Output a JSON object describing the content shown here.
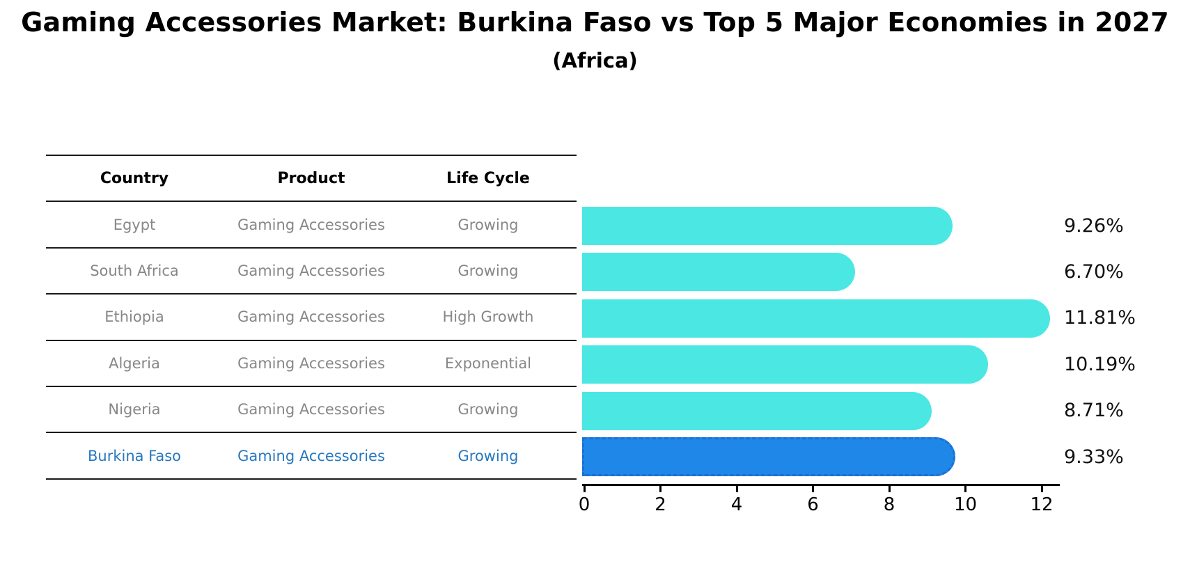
{
  "title": "Gaming Accessories Market: Burkina Faso vs Top 5 Major Economies in 2027",
  "subtitle": "(Africa)",
  "table": {
    "headers": [
      "Country",
      "Product",
      "Life Cycle"
    ],
    "rows": [
      {
        "country": "Egypt",
        "product": "Gaming Accessories",
        "life_cycle": "Growing",
        "highlight": false
      },
      {
        "country": "South Africa",
        "product": "Gaming Accessories",
        "life_cycle": "Growing",
        "highlight": false
      },
      {
        "country": "Ethiopia",
        "product": "Gaming Accessories",
        "life_cycle": "High Growth",
        "highlight": false
      },
      {
        "country": "Algeria",
        "product": "Gaming Accessories",
        "life_cycle": "Exponential",
        "highlight": false
      },
      {
        "country": "Nigeria",
        "product": "Gaming Accessories",
        "life_cycle": "Growing",
        "highlight": false
      },
      {
        "country": "Burkina Faso",
        "product": "Gaming Accessories",
        "life_cycle": "Growing",
        "highlight": true
      }
    ]
  },
  "chart_data": {
    "type": "bar",
    "orientation": "horizontal",
    "title": "Gaming Accessories Market: Burkina Faso vs Top 5 Major Economies in 2027",
    "subtitle": "(Africa)",
    "categories": [
      "Egypt",
      "South Africa",
      "Ethiopia",
      "Algeria",
      "Nigeria",
      "Burkina Faso"
    ],
    "values": [
      9.26,
      6.7,
      11.81,
      10.19,
      8.71,
      9.33
    ],
    "value_labels": [
      "9.26%",
      "6.70%",
      "11.81%",
      "10.19%",
      "8.71%",
      "9.33%"
    ],
    "xlabel": "",
    "ylabel": "",
    "xlim": [
      0,
      12.5
    ],
    "x_ticks": [
      0,
      2,
      4,
      6,
      8,
      10,
      12
    ],
    "grid": false,
    "legend": "none",
    "highlight_index": 5,
    "colors": {
      "bar": "#4BE7E3",
      "highlight_bar": "#1E87E8",
      "highlight_bar_edge": "#1b6fd6",
      "highlight_text": "#2878BE",
      "row_text": "#878787",
      "header_text": "#000000",
      "axis": "#000000"
    }
  }
}
